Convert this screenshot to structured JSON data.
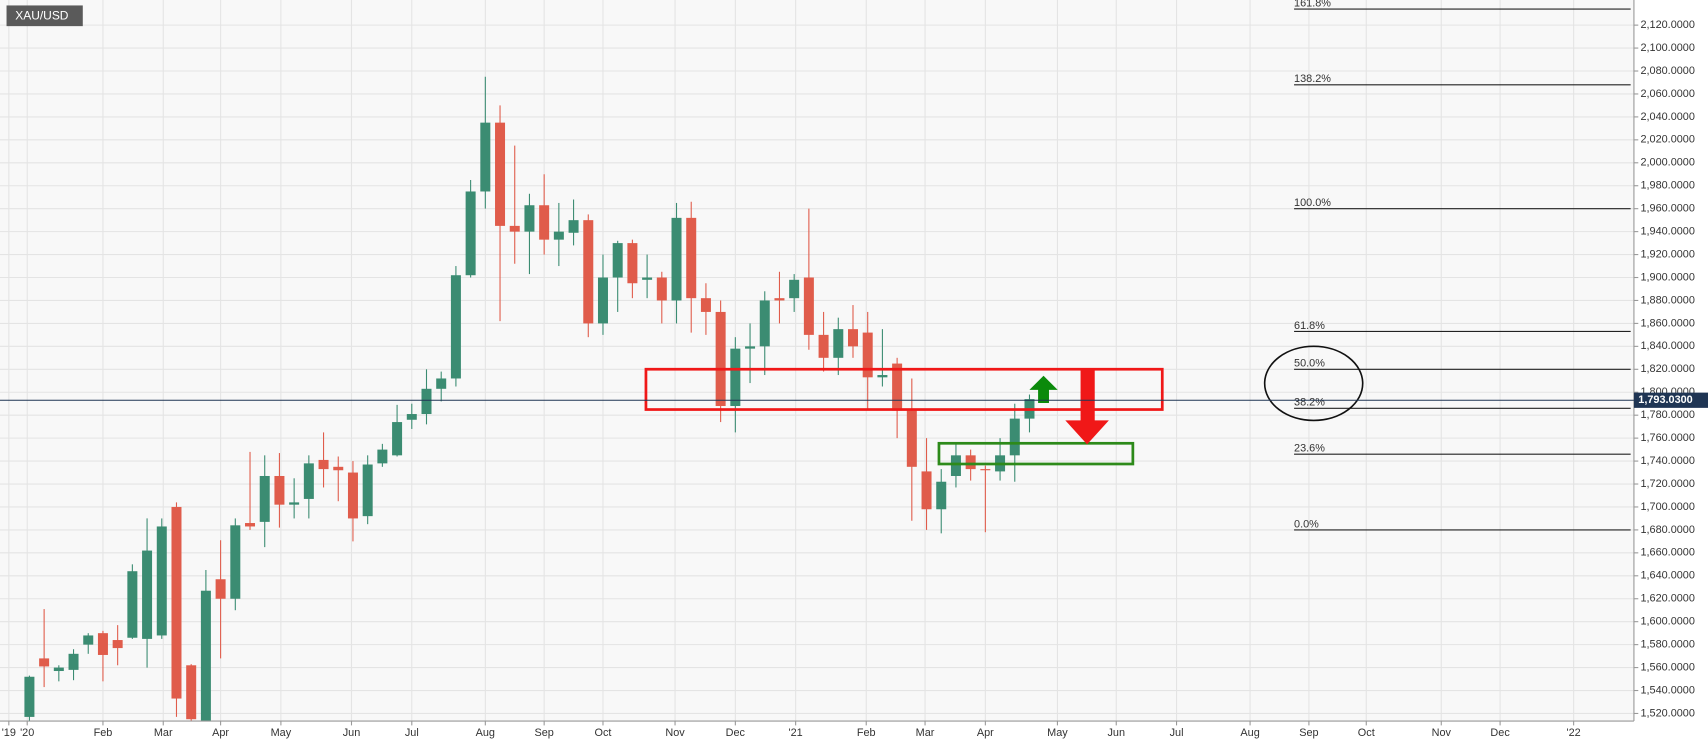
{
  "chart_data": {
    "type": "candlestick",
    "title": "XAU/USD",
    "up_color": "#3b8c72",
    "down_color": "#e05c4b",
    "grid": true,
    "x": [
      0,
      1,
      2,
      3,
      4,
      5,
      6,
      7,
      8,
      9,
      10,
      11,
      12,
      13,
      14,
      15,
      16,
      17,
      18,
      19,
      20,
      21,
      22,
      23,
      24,
      25,
      26,
      27,
      28,
      29,
      30,
      31,
      32,
      33,
      34,
      35,
      36,
      37,
      38,
      39,
      40,
      41,
      42,
      43,
      44,
      45,
      46,
      47,
      48,
      49,
      50,
      51,
      52,
      53,
      54,
      55,
      56,
      57,
      58,
      59,
      60,
      61,
      62,
      63,
      64,
      65,
      66,
      67,
      68
    ],
    "open": [
      1517,
      1568,
      1557,
      1558,
      1580,
      1590,
      1584,
      1586,
      1585,
      1588,
      1700,
      1562,
      1513,
      1637,
      1620,
      1686,
      1687,
      1727,
      1702,
      1707,
      1741,
      1735,
      1730,
      1692,
      1738,
      1745,
      1776,
      1781,
      1803,
      1812,
      1902,
      1975,
      2035,
      1945,
      1940,
      1963,
      1933,
      1939,
      1950,
      1860,
      1900,
      1930,
      1898,
      1900,
      1880,
      1952,
      1882,
      1870,
      1788,
      1838,
      1840,
      1882,
      1882,
      1900,
      1850,
      1830,
      1855,
      1852,
      1813,
      1825,
      1784,
      1731,
      1698,
      1727,
      1745,
      1733,
      1731,
      1745,
      1777
    ],
    "high": [
      1553,
      1611,
      1562,
      1576,
      1590,
      1592,
      1597,
      1650,
      1690,
      1690,
      1704,
      1563,
      1645,
      1671,
      1690,
      1748,
      1745,
      1747,
      1725,
      1745,
      1765,
      1744,
      1740,
      1745,
      1755,
      1789,
      1790,
      1820,
      1818,
      1910,
      1985,
      2075,
      2050,
      2015,
      1973,
      1990,
      1965,
      1968,
      1955,
      1920,
      1932,
      1933,
      1920,
      1905,
      1965,
      1966,
      1895,
      1880,
      1848,
      1860,
      1888,
      1905,
      1903,
      1960,
      1870,
      1865,
      1876,
      1870,
      1855,
      1830,
      1812,
      1760,
      1733,
      1755,
      1750,
      1736,
      1760,
      1790,
      1798
    ],
    "low": [
      1513,
      1543,
      1548,
      1549,
      1572,
      1548,
      1562,
      1585,
      1560,
      1585,
      1517,
      1513,
      1513,
      1568,
      1610,
      1680,
      1665,
      1682,
      1690,
      1690,
      1717,
      1705,
      1670,
      1685,
      1735,
      1744,
      1768,
      1772,
      1792,
      1805,
      1900,
      1960,
      1862,
      1912,
      1903,
      1920,
      1910,
      1928,
      1848,
      1850,
      1870,
      1882,
      1882,
      1860,
      1860,
      1852,
      1850,
      1774,
      1765,
      1808,
      1815,
      1860,
      1870,
      1837,
      1818,
      1815,
      1830,
      1785,
      1805,
      1760,
      1688,
      1680,
      1677,
      1717,
      1723,
      1678,
      1723,
      1722,
      1765
    ],
    "close": [
      1552,
      1561,
      1560,
      1572,
      1588,
      1571,
      1577,
      1644,
      1662,
      1683,
      1533,
      1515,
      1627,
      1620,
      1684,
      1683,
      1727,
      1702,
      1704,
      1738,
      1733,
      1732,
      1690,
      1737,
      1750,
      1774,
      1781,
      1803,
      1812,
      1902,
      1975,
      2035,
      1945,
      1940,
      1963,
      1933,
      1940,
      1950,
      1860,
      1900,
      1930,
      1895,
      1900,
      1880,
      1952,
      1882,
      1870,
      1788,
      1838,
      1840,
      1880,
      1880,
      1898,
      1850,
      1830,
      1855,
      1840,
      1813,
      1815,
      1784,
      1735,
      1698,
      1722,
      1745,
      1733,
      1732,
      1745,
      1777,
      1794
    ],
    "xlim": [
      -2,
      109.1
    ],
    "xticks": [
      {
        "value": -1.4,
        "label": "'19"
      },
      {
        "value": -0.15,
        "label": "'20"
      },
      {
        "value": 5,
        "label": "Feb"
      },
      {
        "value": 9.1,
        "label": "Mar"
      },
      {
        "value": 13,
        "label": "Apr"
      },
      {
        "value": 17.1,
        "label": "May"
      },
      {
        "value": 21.9,
        "label": "Jun"
      },
      {
        "value": 26,
        "label": "Jul"
      },
      {
        "value": 31,
        "label": "Aug"
      },
      {
        "value": 35,
        "label": "Sep"
      },
      {
        "value": 39,
        "label": "Oct"
      },
      {
        "value": 43.9,
        "label": "Nov"
      },
      {
        "value": 48,
        "label": "Dec"
      },
      {
        "value": 52.1,
        "label": "'21"
      },
      {
        "value": 56.9,
        "label": "Feb"
      },
      {
        "value": 60.9,
        "label": "Mar"
      },
      {
        "value": 65,
        "label": "Apr"
      },
      {
        "value": 69.9,
        "label": "May"
      },
      {
        "value": 73.9,
        "label": "Jun"
      },
      {
        "value": 78,
        "label": "Jul"
      },
      {
        "value": 83,
        "label": "Aug"
      },
      {
        "value": 87,
        "label": "Sep"
      },
      {
        "value": 90.9,
        "label": "Oct"
      },
      {
        "value": 96,
        "label": "Nov"
      },
      {
        "value": 100,
        "label": "Dec"
      },
      {
        "value": 105,
        "label": "'22"
      }
    ],
    "ylim": [
      1513.4,
      2141.9
    ],
    "yticks": [
      {
        "value": 1520,
        "label": "1,520.0000"
      },
      {
        "value": 1540,
        "label": "1,540.0000"
      },
      {
        "value": 1560,
        "label": "1,560.0000"
      },
      {
        "value": 1580,
        "label": "1,580.0000"
      },
      {
        "value": 1600,
        "label": "1,600.0000"
      },
      {
        "value": 1620,
        "label": "1,620.0000"
      },
      {
        "value": 1640,
        "label": "1,640.0000"
      },
      {
        "value": 1660,
        "label": "1,660.0000"
      },
      {
        "value": 1680,
        "label": "1,680.0000"
      },
      {
        "value": 1700,
        "label": "1,700.0000"
      },
      {
        "value": 1720,
        "label": "1,720.0000"
      },
      {
        "value": 1740,
        "label": "1,740.0000"
      },
      {
        "value": 1760,
        "label": "1,760.0000"
      },
      {
        "value": 1780,
        "label": "1,780.0000"
      },
      {
        "value": 1800,
        "label": "1,800.0000"
      },
      {
        "value": 1820,
        "label": "1,820.0000"
      },
      {
        "value": 1840,
        "label": "1,840.0000"
      },
      {
        "value": 1860,
        "label": "1,860.0000"
      },
      {
        "value": 1880,
        "label": "1,880.0000"
      },
      {
        "value": 1900,
        "label": "1,900.0000"
      },
      {
        "value": 1920,
        "label": "1,920.0000"
      },
      {
        "value": 1940,
        "label": "1,940.0000"
      },
      {
        "value": 1960,
        "label": "1,960.0000"
      },
      {
        "value": 1980,
        "label": "1,980.0000"
      },
      {
        "value": 2000,
        "label": "2,000.0000"
      },
      {
        "value": 2020,
        "label": "2,020.0000"
      },
      {
        "value": 2040,
        "label": "2,040.0000"
      },
      {
        "value": 2060,
        "label": "2,060.0000"
      },
      {
        "value": 2080,
        "label": "2,080.0000"
      },
      {
        "value": 2100,
        "label": "2,100.0000"
      },
      {
        "value": 2120,
        "label": "2,120.0000"
      }
    ],
    "last_price": {
      "value": 1793.03,
      "label": "1,793.0300"
    },
    "fib_levels": [
      {
        "value": 2134,
        "label": "161.8%"
      },
      {
        "value": 2068,
        "label": "138.2%"
      },
      {
        "value": 1960,
        "label": "100.0%"
      },
      {
        "value": 1853,
        "label": "61.8%"
      },
      {
        "value": 1820,
        "label": "50.0%"
      },
      {
        "value": 1786,
        "label": "38.2%"
      },
      {
        "value": 1746,
        "label": "23.6%"
      },
      {
        "value": 1680,
        "label": "0.0%"
      }
    ]
  }
}
